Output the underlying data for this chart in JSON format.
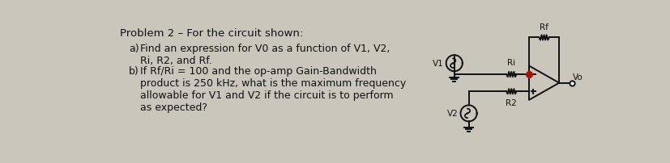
{
  "background_color": "#cbc6bc",
  "title_text": "Problem 2 – For the circuit shown:",
  "item_a_label": "a)",
  "item_a_text": "Find an expression for V0 as a function of V1, V2,\nRi, R2, and Rf.",
  "item_b_label": "b)",
  "item_b_text": "If Rf/Ri = 100 and the op-amp Gain-Bandwidth\nproduct is 250 kHz, what is the maximum frequency\nallowable for V1 and V2 if the circuit is to perform\nas expected?",
  "font_size_title": 9.5,
  "font_size_body": 9.0,
  "font_size_circuit": 7.5,
  "text_color": "#111111",
  "circuit_color": "#111111",
  "node_color": "#aa1100",
  "lw": 1.4
}
